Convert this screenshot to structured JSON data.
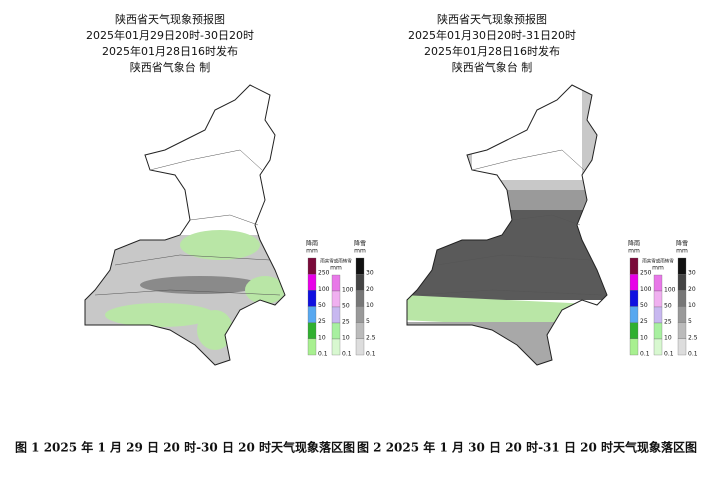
{
  "panels": [
    {
      "title": "陕西省天气现象预报图",
      "period": "2025年01月29日20时-30日20时",
      "issued": "2025年01月28日16时发布",
      "agency": "陕西省气象台  制",
      "legend": {
        "rain": {
          "title": "降雨",
          "unit": "mm",
          "levels": [
            250,
            100,
            50,
            25,
            10,
            0.1
          ]
        },
        "sleet": {
          "title": "雨夹雪或雨转雪",
          "unit": "mm",
          "levels": [
            100,
            50,
            25,
            10,
            0.1
          ]
        },
        "snow": {
          "title": "降雪",
          "unit": "mm",
          "levels": [
            30,
            20,
            10,
            5,
            2.5,
            0.1
          ]
        }
      },
      "caption": "图 1 2025 年 1 月 29 日 20 时-30 日 20 时天气现象落区图"
    },
    {
      "title": "陕西省天气现象预报图",
      "period": "2025年01月30日20时-31日20时",
      "issued": "2025年01月28日16时发布",
      "agency": "陕西省气象台  制",
      "legend": {
        "rain": {
          "title": "降雨",
          "unit": "mm",
          "levels": [
            250,
            100,
            50,
            25,
            10,
            0.1
          ]
        },
        "sleet": {
          "title": "雨夹雪或雨转雪",
          "unit": "mm",
          "levels": [
            100,
            50,
            25,
            10,
            0.1
          ]
        },
        "snow": {
          "title": "降雪",
          "unit": "mm",
          "levels": [
            30,
            20,
            10,
            5,
            2.5,
            0.1
          ]
        }
      },
      "caption": "图 2 2025 年 1 月 30 日 20 时-31 日 20 时天气现象落区图"
    }
  ]
}
